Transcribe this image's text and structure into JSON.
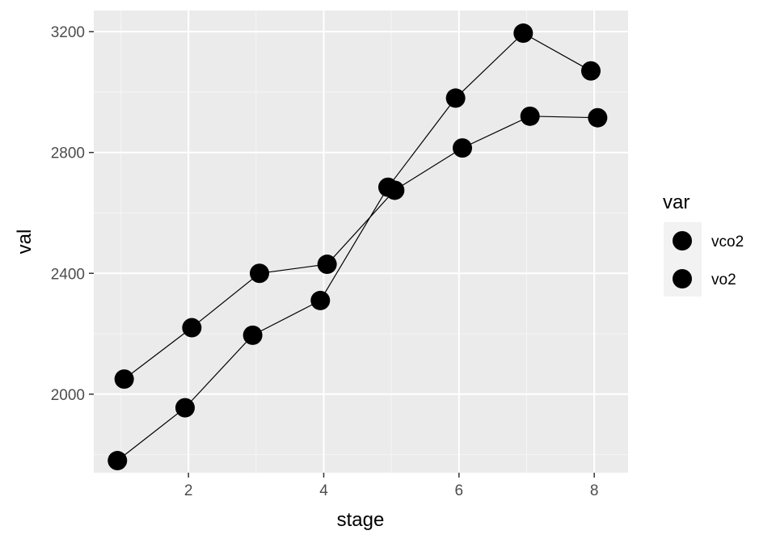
{
  "chart_data": {
    "type": "line",
    "xlabel": "stage",
    "ylabel": "val",
    "xlim": [
      0.6,
      8.5
    ],
    "ylim": [
      1740,
      3270
    ],
    "x_ticks": [
      2,
      4,
      6,
      8
    ],
    "y_ticks": [
      2000,
      2400,
      2800,
      3200
    ],
    "x_minor_ticks": [
      1,
      3,
      5,
      7
    ],
    "y_minor_ticks": [
      1800,
      2200,
      2600,
      3000
    ],
    "grid": true,
    "legend": {
      "title": "var",
      "position": "right",
      "entries": [
        "vco2",
        "vo2"
      ]
    },
    "series": [
      {
        "name": "vco2",
        "x": [
          0.95,
          1.95,
          2.95,
          3.95,
          4.95,
          5.95,
          6.95,
          7.95
        ],
        "y": [
          1780,
          1955,
          2195,
          2310,
          2685,
          2980,
          3195,
          3070
        ]
      },
      {
        "name": "vo2",
        "x": [
          1.05,
          2.05,
          3.05,
          4.05,
          5.05,
          6.05,
          7.05,
          8.05
        ],
        "y": [
          2050,
          2220,
          2400,
          2430,
          2675,
          2815,
          2920,
          2915
        ]
      }
    ],
    "colors": {
      "panel": "#ebebeb",
      "grid_major": "#ffffff",
      "grid_minor": "#f5f5f5",
      "point": "#000000",
      "line": "#000000",
      "legend_key_bg": "#f2f2f2"
    }
  }
}
